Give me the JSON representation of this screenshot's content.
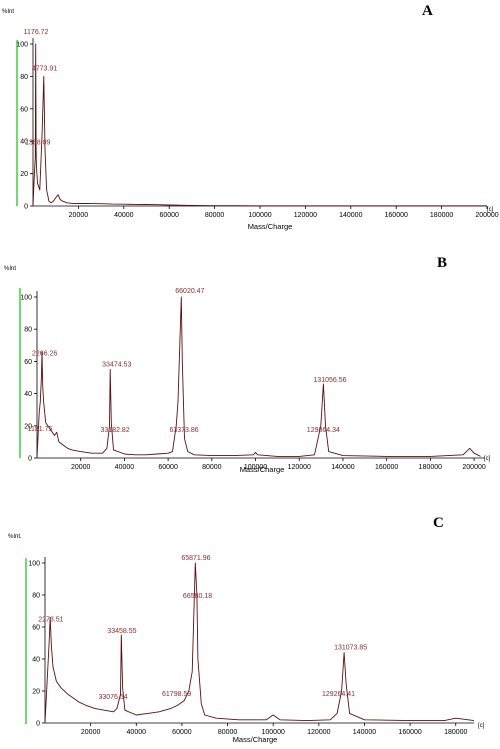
{
  "colors": {
    "trace": "#5a1010",
    "peak_label": "#8b2c2c",
    "axis": "#000000",
    "side_marker": "#33cc33"
  },
  "chart_data": [
    {
      "type": "line",
      "panel_label": "A",
      "ylabel": "%Int",
      "xlabel": "Mass/Charge",
      "x_unit": "[c]",
      "xlim": [
        0,
        200000
      ],
      "ylim": [
        0,
        100
      ],
      "x_ticks": [
        20000,
        40000,
        60000,
        80000,
        100000,
        120000,
        140000,
        160000,
        180000,
        200000
      ],
      "y_ticks": [
        0,
        20,
        40,
        60,
        80,
        100
      ],
      "grid": false,
      "series": [
        {
          "x": [
            0,
            600,
            1000,
            1176.72,
            1300,
            1368.09,
            1500,
            2000,
            3000,
            4000,
            4773.91,
            5300,
            6000,
            7000,
            8000,
            9000,
            10000,
            11000,
            12000,
            13000,
            15000,
            18000,
            22000,
            26000,
            30000,
            35000,
            40000,
            45000,
            50000,
            55000,
            60000,
            65000,
            70000,
            80000,
            90000,
            100000,
            120000,
            140000,
            160000,
            180000,
            200000
          ],
          "y": [
            0,
            20,
            30,
            100,
            55,
            36,
            25,
            14,
            10,
            45,
            80,
            35,
            10,
            3,
            2,
            3,
            5,
            7,
            4,
            3,
            2,
            1.5,
            1.6,
            1.5,
            1.4,
            1.2,
            1.1,
            1,
            0.9,
            0.8,
            0.6,
            0.5,
            0.3,
            0.2,
            0.2,
            0.15,
            0.12,
            0.1,
            0.1,
            0.1,
            0.1
          ]
        }
      ],
      "annotations": [
        {
          "text": "1176.72",
          "x": 1176.72,
          "y": 100
        },
        {
          "text": "4773.91",
          "x": 4773.91,
          "y": 80
        },
        {
          "text": "1368.09",
          "x": 1368.09,
          "y": 36
        }
      ]
    },
    {
      "type": "line",
      "panel_label": "B",
      "ylabel": "%Int",
      "xlabel": "Mass/Charge",
      "x_unit": "[c]",
      "xlim": [
        0,
        205000
      ],
      "ylim": [
        0,
        100
      ],
      "x_ticks": [
        20000,
        40000,
        60000,
        80000,
        100000,
        120000,
        140000,
        160000,
        180000,
        200000
      ],
      "y_ticks": [
        0,
        20,
        40,
        60,
        80,
        100
      ],
      "grid": false,
      "series": [
        {
          "x": [
            0,
            1000,
            1500,
            2000,
            2266.26,
            2600,
            3000,
            4000,
            6000,
            8000,
            9000,
            10000,
            12000,
            14000,
            16000,
            20000,
            25000,
            30000,
            32000,
            33182.82,
            33474.53,
            34000,
            35000,
            40000,
            45000,
            50000,
            55000,
            60000,
            62000,
            63700,
            64500,
            66020.47,
            66500,
            67500,
            69000,
            72000,
            80000,
            90000,
            99000,
            100000,
            101000,
            110000,
            120000,
            127000,
            129864.34,
            131056.56,
            132000,
            133500,
            140000,
            160000,
            180000,
            195000,
            198000,
            200000,
            203000
          ],
          "y": [
            0,
            28,
            35,
            50,
            66,
            45,
            35,
            22,
            18,
            14,
            16,
            10,
            8,
            6,
            5,
            4,
            3,
            3,
            6,
            20,
            55,
            22,
            5,
            2.5,
            2,
            2,
            2.5,
            3,
            4,
            20,
            35,
            100,
            60,
            12,
            4,
            2,
            1.5,
            1.5,
            2,
            3.5,
            2,
            1,
            1,
            2,
            20,
            46,
            20,
            4,
            1.5,
            1,
            1,
            2,
            6,
            3,
            1
          ]
        }
      ],
      "annotations": [
        {
          "text": "66020.47",
          "x": 66020.47,
          "y": 100
        },
        {
          "text": "2266.26",
          "x": 2266.26,
          "y": 66
        },
        {
          "text": "33474.53",
          "x": 33474.53,
          "y": 55
        },
        {
          "text": "131056.56",
          "x": 131056.56,
          "y": 46
        },
        {
          "text": "1181.75",
          "x": 1181.75,
          "y": 28
        },
        {
          "text": "33182.82",
          "x": 33182.82,
          "y": 20
        },
        {
          "text": "63373.86",
          "x": 63373.86,
          "y": 20
        },
        {
          "text": "129864.34",
          "x": 129864.34,
          "y": 20
        }
      ]
    },
    {
      "type": "line",
      "panel_label": "C",
      "ylabel": "%Int.",
      "xlabel": "Mass/Charge",
      "x_unit": "[c]",
      "xlim": [
        0,
        188000
      ],
      "ylim": [
        0,
        100
      ],
      "x_ticks": [
        20000,
        40000,
        60000,
        80000,
        100000,
        120000,
        140000,
        160000,
        180000
      ],
      "y_ticks": [
        0,
        20,
        40,
        60,
        80,
        100
      ],
      "grid": false,
      "series": [
        {
          "x": [
            0,
            1000,
            1800,
            2273.51,
            2800,
            3500,
            5000,
            7000,
            10000,
            13000,
            15000,
            18000,
            22000,
            26000,
            30000,
            31500,
            33076.54,
            33458.55,
            34000,
            35000,
            40000,
            45000,
            50000,
            55000,
            58000,
            61000,
            63000,
            64500,
            65871.96,
            66580.18,
            67000,
            68500,
            70000,
            75000,
            85000,
            97000,
            100000,
            103000,
            115000,
            125000,
            128000,
            130000,
            131073.85,
            132000,
            133500,
            140000,
            160000,
            175000,
            180000,
            188000
          ],
          "y": [
            0,
            28,
            50,
            66,
            48,
            35,
            26,
            22,
            18,
            15,
            13,
            11,
            9,
            8,
            7,
            9,
            18,
            55,
            22,
            8,
            5,
            6,
            7,
            9,
            11,
            14,
            20,
            32,
            100,
            80,
            40,
            12,
            5,
            3,
            2,
            2,
            5,
            2,
            1.5,
            2,
            6,
            20,
            44,
            24,
            6,
            2,
            1.5,
            1.5,
            3,
            1.5
          ]
        }
      ],
      "annotations": [
        {
          "text": "65871.96",
          "x": 65871.96,
          "y": 100
        },
        {
          "text": "66580.18",
          "x": 66580.18,
          "y": 80
        },
        {
          "text": "2273.51",
          "x": 2273.51,
          "y": 66
        },
        {
          "text": "33458.55",
          "x": 33458.55,
          "y": 55
        },
        {
          "text": "131073.85",
          "x": 131073.85,
          "y": 44
        },
        {
          "text": "33076.54",
          "x": 33076.54,
          "y": 18
        },
        {
          "text": "61798.59",
          "x": 61798.59,
          "y": 20
        },
        {
          "text": "129264.41",
          "x": 129264.41,
          "y": 20
        }
      ]
    }
  ]
}
